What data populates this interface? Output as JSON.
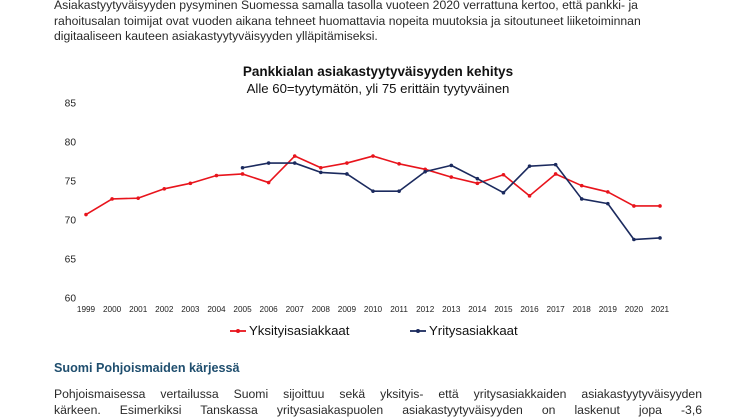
{
  "intro_lines": [
    "Asiakastyytyväisyyden pysyminen Suomessa samalla tasolla vuoteen 2020 verrattuna kertoo, että pankki- ja",
    "rahoitusalan toimijat ovat vuoden aikana tehneet huomattavia nopeita muutoksia ja sitoutuneet liiketoiminnan",
    "digitaaliseen kauteen asiakastyytyväisyyden ylläpitämiseksi."
  ],
  "section_heading": "Suomi Pohjoismaiden kärjessä",
  "body_lines": [
    "Pohjoismaisessa vertailussa Suomi sijoittuu sekä yksityis- että yritysasiakkaiden asiakastyytyväisyyden",
    "kärkeen. Esimerkiksi Tanskassa yritysasiakaspuolen asiakastyytyväisyyden on laskenut jopa -3,6"
  ],
  "chart_data": {
    "type": "line",
    "title": "Pankkialan asiakastyytyväisyyden kehitys",
    "subtitle": "Alle 60=tyytymätön, yli 75 erittäin tyytyväinen",
    "xlabel": "",
    "ylabel": "",
    "ylim": [
      60,
      85
    ],
    "yticks": [
      60,
      65,
      70,
      75,
      80,
      85
    ],
    "grid": false,
    "legend_position": "bottom",
    "categories": [
      "1999",
      "2000",
      "2001",
      "2002",
      "2003",
      "2004",
      "2005",
      "2006",
      "2007",
      "2008",
      "2009",
      "2010",
      "2011",
      "2012",
      "2013",
      "2014",
      "2015",
      "2016",
      "2017",
      "2018",
      "2019",
      "2020",
      "2021"
    ],
    "series": [
      {
        "name": "Yksityisasiakkaat",
        "color": "#e8141c",
        "marker": "dot",
        "values": [
          70.7,
          72.7,
          72.8,
          74.0,
          74.7,
          75.7,
          75.9,
          74.8,
          78.2,
          76.7,
          77.3,
          78.2,
          77.2,
          76.5,
          75.5,
          74.7,
          75.8,
          73.1,
          75.9,
          74.4,
          73.6,
          71.8,
          71.8
        ]
      },
      {
        "name": "Yritysasiakkaat",
        "color": "#1b2a5e",
        "marker": "dot",
        "values": [
          null,
          null,
          null,
          null,
          null,
          null,
          76.7,
          77.3,
          77.3,
          76.1,
          75.9,
          73.7,
          73.7,
          76.2,
          77.0,
          75.3,
          73.5,
          76.9,
          77.1,
          72.7,
          72.1,
          67.5,
          67.7
        ]
      }
    ]
  }
}
